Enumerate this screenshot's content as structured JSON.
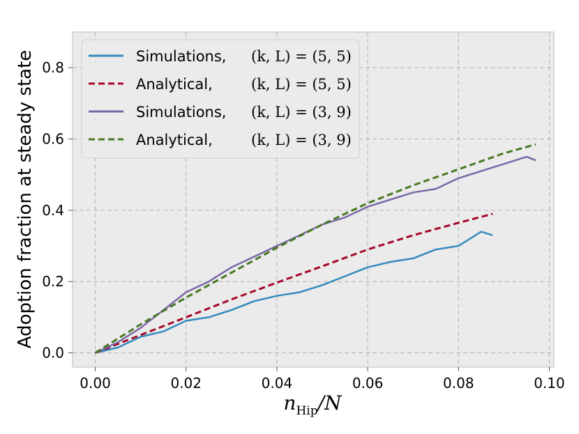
{
  "chart_data": {
    "type": "line",
    "xlabel": "n_Hip/N",
    "xlabel_main": "n",
    "xlabel_sub": "Hip",
    "xlabel_tail": "/N",
    "ylabel": "Adoption fraction at steady state",
    "xlim": [
      -0.005,
      0.101
    ],
    "ylim": [
      -0.04,
      0.9
    ],
    "xticks": [
      0.0,
      0.02,
      0.04,
      0.06,
      0.08,
      0.1
    ],
    "xtick_labels": [
      "0.00",
      "0.02",
      "0.04",
      "0.06",
      "0.08",
      "0.10"
    ],
    "yticks": [
      0.0,
      0.2,
      0.4,
      0.6,
      0.8
    ],
    "ytick_labels": [
      "0.0",
      "0.2",
      "0.4",
      "0.6",
      "0.8"
    ],
    "grid": true,
    "legend_position": "top-left",
    "background": "#ebebeb",
    "series": [
      {
        "name": "Simulations, (k,L)=(5,5)",
        "label_text": "Simulations,",
        "label_math": "(k, L) = (5, 5)",
        "style": "solid",
        "color": "#348abd",
        "x": [
          0.0,
          0.005,
          0.01,
          0.015,
          0.02,
          0.025,
          0.03,
          0.035,
          0.04,
          0.045,
          0.05,
          0.055,
          0.06,
          0.065,
          0.07,
          0.075,
          0.08,
          0.085,
          0.0875
        ],
        "y": [
          0.0,
          0.015,
          0.045,
          0.06,
          0.09,
          0.1,
          0.12,
          0.145,
          0.16,
          0.17,
          0.19,
          0.215,
          0.24,
          0.255,
          0.265,
          0.29,
          0.3,
          0.34,
          0.33
        ]
      },
      {
        "name": "Analytical, (k,L)=(5,5)",
        "label_text": "Analytical,",
        "label_math": "(k, L) = (5, 5)",
        "style": "dashed",
        "color": "#a60628",
        "x": [
          0.0,
          0.01,
          0.02,
          0.03,
          0.04,
          0.05,
          0.06,
          0.07,
          0.08,
          0.0875
        ],
        "y": [
          0.0,
          0.05,
          0.1,
          0.15,
          0.197,
          0.243,
          0.29,
          0.33,
          0.365,
          0.39
        ]
      },
      {
        "name": "Simulations, (k,L)=(3,9)",
        "label_text": "Simulations,",
        "label_math": "(k, L) = (3, 9)",
        "style": "solid",
        "color": "#7a68a6",
        "x": [
          0.0,
          0.005,
          0.01,
          0.015,
          0.02,
          0.025,
          0.03,
          0.035,
          0.04,
          0.045,
          0.05,
          0.055,
          0.06,
          0.065,
          0.07,
          0.075,
          0.08,
          0.085,
          0.09,
          0.095,
          0.097
        ],
        "y": [
          0.0,
          0.03,
          0.07,
          0.12,
          0.17,
          0.2,
          0.24,
          0.27,
          0.3,
          0.33,
          0.36,
          0.38,
          0.41,
          0.43,
          0.45,
          0.46,
          0.49,
          0.51,
          0.53,
          0.55,
          0.54
        ]
      },
      {
        "name": "Analytical, (k,L)=(3,9)",
        "label_text": "Analytical,",
        "label_math": "(k, L) = (3, 9)",
        "style": "dashed",
        "color": "#467821",
        "x": [
          0.0,
          0.01,
          0.02,
          0.03,
          0.04,
          0.05,
          0.06,
          0.07,
          0.08,
          0.09,
          0.097
        ],
        "y": [
          0.0,
          0.08,
          0.155,
          0.225,
          0.295,
          0.36,
          0.42,
          0.47,
          0.515,
          0.56,
          0.585
        ]
      }
    ]
  }
}
